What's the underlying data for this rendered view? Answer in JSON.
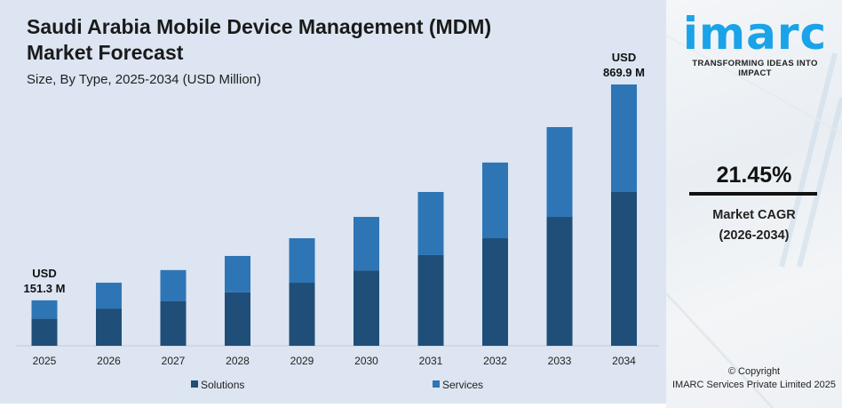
{
  "header": {
    "title_line1": "Saudi Arabia Mobile Device Management (MDM)",
    "title_line2": "Market Forecast",
    "subtitle": "Size, By Type, 2025-2034 (USD Million)"
  },
  "chart_data": {
    "type": "bar",
    "stacked": true,
    "categories": [
      "2025",
      "2026",
      "2027",
      "2028",
      "2029",
      "2030",
      "2031",
      "2032",
      "2033",
      "2034"
    ],
    "series": [
      {
        "name": "Solutions",
        "color": "#1f4e79",
        "values": [
          90,
          124,
          148,
          178,
          210,
          251,
          302,
          358,
          429,
          512
        ]
      },
      {
        "name": "Services",
        "color": "#2e75b6",
        "values": [
          61.3,
          86,
          104,
          121,
          148,
          178,
          210,
          252,
          299,
          357.9
        ]
      }
    ],
    "annotations": [
      {
        "category": "2025",
        "line1": "USD",
        "line2": "151.3 M"
      },
      {
        "category": "2034",
        "line1": "USD",
        "line2": "869.9 M"
      }
    ],
    "ylim": [
      0,
      870
    ],
    "grid": false,
    "legend_position": "bottom"
  },
  "sidebar": {
    "logo_text": "imarc",
    "logo_tagline": "TRANSFORMING IDEAS INTO IMPACT",
    "cagr_value": "21.45%",
    "cagr_label": "Market CAGR",
    "cagr_period": "(2026-2034)",
    "copyright": "© Copyright",
    "company": "IMARC Services Private Limited 2025"
  },
  "colors": {
    "accent": "#1aa3e8",
    "background": "#dce5f1"
  }
}
